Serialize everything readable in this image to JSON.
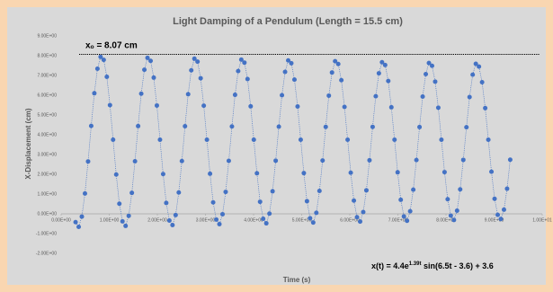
{
  "chart_data": {
    "type": "scatter",
    "title": "Light Damping of a Pendulum (Length = 15.5 cm)",
    "xlabel": "Time (s)",
    "ylabel": "X-Displacement (cm)",
    "annotation": "xₒ = 8.07 cm",
    "hline": 8.07,
    "equation": {
      "base": "x(t) = 4.4e",
      "sup": "1.39t",
      "rest": " sin(6.5t - 3.6) + 3.6"
    },
    "xlim": [
      0,
      10
    ],
    "ylim": [
      -2,
      9
    ],
    "xticks": [
      {
        "value": 0,
        "label": "0.00E+00"
      },
      {
        "value": 1,
        "label": "1.00E+00"
      },
      {
        "value": 2,
        "label": "2.00E+00"
      },
      {
        "value": 3,
        "label": "3.00E+00"
      },
      {
        "value": 4,
        "label": "4.00E+00"
      },
      {
        "value": 5,
        "label": "5.00E+00"
      },
      {
        "value": 6,
        "label": "6.00E+00"
      },
      {
        "value": 7,
        "label": "7.00E+00"
      },
      {
        "value": 8,
        "label": "8.00E+00"
      },
      {
        "value": 9,
        "label": "9.00E+00"
      },
      {
        "value": 10,
        "label": "1.00E+01"
      }
    ],
    "yticks": [
      {
        "value": -2,
        "label": "-2.00E+00"
      },
      {
        "value": -1,
        "label": "-1.00E+00"
      },
      {
        "value": 0,
        "label": "0.00E+00"
      },
      {
        "value": 1,
        "label": "1.00E+00"
      },
      {
        "value": 2,
        "label": "2.00E+00"
      },
      {
        "value": 3,
        "label": "3.00E+00"
      },
      {
        "value": 4,
        "label": "4.00E+00"
      },
      {
        "value": 5,
        "label": "5.00E+00"
      },
      {
        "value": 6,
        "label": "6.00E+00"
      },
      {
        "value": 7,
        "label": "7.00E+00"
      },
      {
        "value": 8,
        "label": "8.00E+00"
      },
      {
        "value": 9,
        "label": "9.00E+00"
      }
    ],
    "color": "#4472c4",
    "x": [
      0.3,
      0.365,
      0.43,
      0.495,
      0.56,
      0.625,
      0.69,
      0.755,
      0.82,
      0.885,
      0.95,
      1.015,
      1.08,
      1.145,
      1.21,
      1.275,
      1.34,
      1.405,
      1.47,
      1.535,
      1.6,
      1.665,
      1.73,
      1.795,
      1.86,
      1.925,
      1.99,
      2.055,
      2.12,
      2.185,
      2.25,
      2.315,
      2.38,
      2.445,
      2.51,
      2.575,
      2.64,
      2.705,
      2.77,
      2.835,
      2.9,
      2.965,
      3.03,
      3.095,
      3.16,
      3.225,
      3.29,
      3.355,
      3.42,
      3.485,
      3.55,
      3.615,
      3.68,
      3.745,
      3.81,
      3.875,
      3.94,
      4.005,
      4.07,
      4.135,
      4.2,
      4.265,
      4.33,
      4.395,
      4.46,
      4.525,
      4.59,
      4.655,
      4.72,
      4.785,
      4.85,
      4.915,
      4.98,
      5.045,
      5.11,
      5.175,
      5.24,
      5.305,
      5.37,
      5.435,
      5.5,
      5.565,
      5.63,
      5.695,
      5.76,
      5.825,
      5.89,
      5.955,
      6.02,
      6.085,
      6.15,
      6.215,
      6.28,
      6.345,
      6.41,
      6.475,
      6.54,
      6.605,
      6.67,
      6.735,
      6.8,
      6.865,
      6.93,
      6.995,
      7.06,
      7.125,
      7.19,
      7.255,
      7.32,
      7.385,
      7.45,
      7.515,
      7.58,
      7.645,
      7.71,
      7.775,
      7.84,
      7.905,
      7.97,
      8.035,
      8.1,
      8.165,
      8.23,
      8.295,
      8.36,
      8.425,
      8.49,
      8.555,
      8.62,
      8.685,
      8.75,
      8.815,
      8.88,
      8.945,
      9.01,
      9.075,
      9.14,
      9.205,
      9.27,
      9.335
    ],
    "values": [
      -0.42,
      -0.66,
      -0.14,
      1.03,
      2.65,
      4.45,
      6.1,
      7.34,
      7.94,
      7.79,
      6.93,
      5.5,
      3.75,
      1.99,
      0.51,
      -0.38,
      -0.61,
      -0.1,
      1.06,
      2.66,
      4.44,
      6.08,
      7.29,
      7.89,
      7.74,
      6.89,
      5.48,
      3.75,
      2.01,
      0.55,
      -0.34,
      -0.57,
      -0.06,
      1.08,
      2.67,
      4.43,
      6.05,
      7.26,
      7.85,
      7.7,
      6.86,
      5.47,
      3.75,
      2.03,
      0.58,
      -0.29,
      -0.52,
      -0.02,
      1.11,
      2.68,
      4.42,
      6.02,
      7.22,
      7.8,
      7.65,
      6.82,
      5.44,
      3.75,
      2.05,
      0.61,
      -0.25,
      -0.48,
      0.01,
      1.14,
      2.69,
      4.41,
      6.0,
      7.18,
      7.76,
      7.62,
      6.79,
      5.43,
      3.75,
      2.06,
      0.64,
      -0.22,
      -0.44,
      0.05,
      1.16,
      2.7,
      4.4,
      5.98,
      7.15,
      7.72,
      7.58,
      6.76,
      5.41,
      3.75,
      2.08,
      0.67,
      -0.17,
      -0.39,
      0.09,
      1.19,
      2.71,
      4.4,
      5.95,
      7.11,
      7.67,
      7.53,
      6.72,
      5.39,
      3.75,
      2.1,
      0.71,
      -0.13,
      -0.35,
      0.13,
      1.22,
      2.72,
      4.39,
      5.93,
      7.07,
      7.63,
      7.49,
      6.69,
      5.37,
      3.75,
      2.11,
      0.74,
      -0.09,
      -0.31,
      0.16,
      1.24,
      2.73,
      4.38,
      5.91,
      7.04,
      7.59,
      7.45,
      6.66,
      5.35,
      3.75,
      2.13,
      0.76,
      -0.05,
      -0.26,
      0.21,
      1.27,
      2.74
    ]
  }
}
